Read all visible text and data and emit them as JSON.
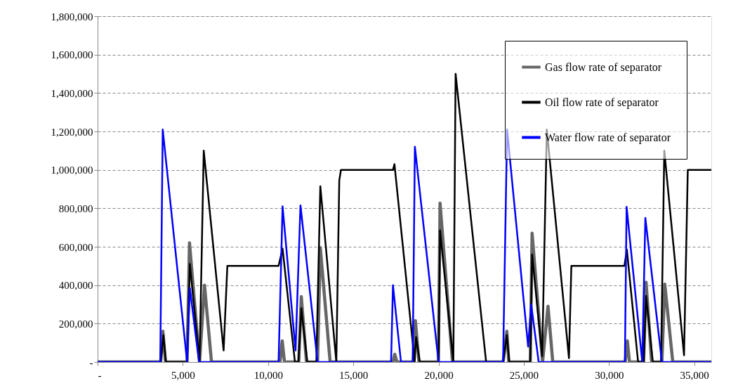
{
  "chart_data": {
    "type": "line",
    "xlim": [
      0,
      36000
    ],
    "ylim": [
      0,
      1800000
    ],
    "xticks": [
      {
        "value": 0,
        "label": "-"
      },
      {
        "value": 5000,
        "label": "5,000"
      },
      {
        "value": 10000,
        "label": "10,000"
      },
      {
        "value": 15000,
        "label": "15,000"
      },
      {
        "value": 20000,
        "label": "20,000"
      },
      {
        "value": 25000,
        "label": "25,000"
      },
      {
        "value": 30000,
        "label": "30,000"
      },
      {
        "value": 35000,
        "label": "35,000"
      }
    ],
    "yticks": [
      {
        "value": 0,
        "label": "-"
      },
      {
        "value": 200000,
        "label": "200,000"
      },
      {
        "value": 400000,
        "label": "400,000"
      },
      {
        "value": 600000,
        "label": "600,000"
      },
      {
        "value": 800000,
        "label": "800,000"
      },
      {
        "value": 1000000,
        "label": "1,000,000"
      },
      {
        "value": 1200000,
        "label": "1,200,000"
      },
      {
        "value": 1400000,
        "label": "1,400,000"
      },
      {
        "value": 1600000,
        "label": "1,600,000"
      },
      {
        "value": 1800000,
        "label": "1,800,000"
      }
    ],
    "grid": "y",
    "legend": "top right",
    "line_style": "solid",
    "marker": "none",
    "series": [
      {
        "name": "Gas flow rate of separator",
        "color": "#666666",
        "x": [
          0,
          3700,
          3830,
          3980,
          5250,
          5390,
          5980,
          6270,
          6680,
          10700,
          10830,
          10960,
          11800,
          11950,
          12250,
          12900,
          13064,
          13640,
          17330,
          17430,
          17560,
          18520,
          18640,
          18850,
          19990,
          20087,
          20820,
          23790,
          24005,
          24120,
          25380,
          25487,
          26100,
          26420,
          26700,
          30950,
          31075,
          31200,
          32030,
          32173,
          32500,
          33100,
          33270,
          33740,
          36000
        ],
        "values": [
          0,
          0,
          160000,
          0,
          0,
          620000,
          0,
          400000,
          0,
          0,
          110000,
          0,
          0,
          340000,
          0,
          0,
          595000,
          0,
          0,
          40000,
          0,
          0,
          215000,
          0,
          0,
          827000,
          0,
          0,
          160000,
          0,
          0,
          670000,
          0,
          290000,
          0,
          0,
          110000,
          0,
          0,
          415000,
          0,
          0,
          405000,
          0,
          0
        ]
      },
      {
        "name": "Oil flow rate of separator",
        "color": "#000000",
        "x": [
          0,
          3700,
          3860,
          4010,
          5250,
          5410,
          5980,
          6226,
          7392,
          7611,
          10615,
          10850,
          11575,
          11780,
          11951,
          12300,
          12830,
          13064,
          14003,
          14176,
          14277,
          17327,
          17413,
          18600,
          18680,
          18900,
          20000,
          20087,
          20867,
          21000,
          22790,
          23790,
          24005,
          24150,
          25380,
          25487,
          26078,
          26350,
          27650,
          27790,
          30900,
          31046,
          31705,
          32030,
          32173,
          32570,
          33050,
          33242,
          34400,
          34620,
          36000
        ],
        "values": [
          0,
          0,
          140000,
          0,
          0,
          510000,
          0,
          1100000,
          60000,
          500000,
          500000,
          590000,
          0,
          0,
          280000,
          0,
          0,
          915000,
          0,
          945000,
          1000000,
          1000000,
          1030000,
          0,
          130000,
          0,
          0,
          685000,
          0,
          1500000,
          0,
          0,
          140000,
          0,
          0,
          560000,
          30000,
          1210000,
          20000,
          500000,
          500000,
          585000,
          0,
          0,
          344000,
          0,
          0,
          1100000,
          35000,
          1000000,
          1000000
        ]
      },
      {
        "name": "Water flow rate of separator",
        "color": "#0000ff",
        "x": [
          0,
          3674,
          3820,
          5250,
          5410,
          5950,
          10615,
          10850,
          11611,
          11900,
          12905,
          17215,
          17325,
          17795,
          18482,
          18612,
          20000,
          23785,
          24020,
          25255,
          25433,
          25873,
          30930,
          31030,
          31950,
          32130,
          33100,
          36000
        ],
        "values": [
          0,
          0,
          1210000,
          0,
          385000,
          0,
          0,
          810000,
          60000,
          815000,
          0,
          0,
          400000,
          0,
          0,
          1120000,
          0,
          0,
          1210000,
          80000,
          300000,
          0,
          0,
          808000,
          0,
          750000,
          0,
          0
        ]
      }
    ]
  }
}
